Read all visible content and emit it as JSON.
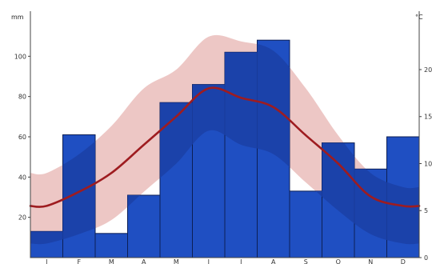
{
  "chart_data": {
    "type": "bar",
    "categories": [
      "J",
      "F",
      "M",
      "A",
      "M",
      "J",
      "J",
      "A",
      "S",
      "O",
      "N",
      "D"
    ],
    "series": [
      {
        "axis": "left",
        "type": "bar",
        "values": [
          13,
          61,
          12,
          31,
          77,
          86,
          102,
          108,
          33,
          57,
          44,
          60
        ]
      },
      {
        "axis": "right",
        "type": "line",
        "values": [
          5.5,
          7.0,
          9.0,
          12.0,
          15.0,
          18.0,
          17.0,
          16.0,
          13.0,
          10.0,
          6.5,
          5.5
        ]
      }
    ],
    "band_temperature": {
      "high": [
        9.0,
        11.0,
        14.0,
        18.0,
        20.0,
        23.5,
        23.0,
        22.0,
        18.0,
        13.0,
        9.0,
        7.5
      ],
      "low": [
        1.5,
        2.5,
        4.0,
        7.0,
        10.0,
        13.5,
        12.0,
        11.0,
        8.0,
        5.0,
        2.5,
        1.5
      ]
    },
    "left_axis": {
      "unit": "mm",
      "ticks": [
        "20",
        "40",
        "60",
        "80",
        "100"
      ],
      "ylim": [
        0,
        120
      ]
    },
    "right_axis": {
      "unit": "°C",
      "ticks": [
        "0",
        "5",
        "10",
        "15",
        "20"
      ],
      "ylim": [
        0,
        25.7
      ]
    },
    "grid": false,
    "colors": {
      "bars": "#1f4fc2",
      "bar_overlay": "#1b3fa6",
      "band": "#e9b9b6",
      "line": "#9e1c20",
      "axis": "#444444"
    }
  }
}
